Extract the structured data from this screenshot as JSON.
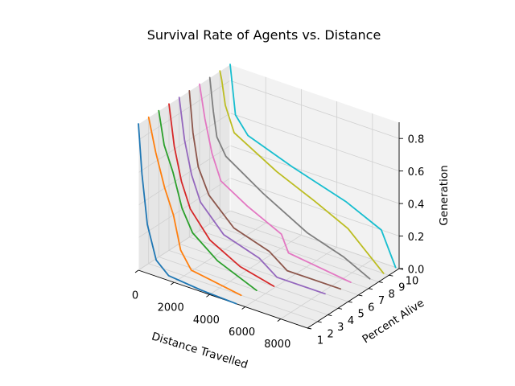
{
  "chart_data": {
    "type": "line",
    "title": "Survival Rate of Agents vs. Distance",
    "xlabel": "Distance Travelled",
    "ylabel": "Percent Alive",
    "zlabel": "Generation",
    "x_ticks": [
      "0",
      "2000",
      "4000",
      "6000",
      "8000"
    ],
    "y_ticks": [
      "1",
      "2",
      "3",
      "4",
      "5",
      "6",
      "7",
      "8",
      "9",
      "10"
    ],
    "z_ticks": [
      "0.0",
      "0.2",
      "0.4",
      "0.6",
      "0.8"
    ],
    "xlim": [
      0,
      9500
    ],
    "ylim": [
      1,
      10
    ],
    "zlim": [
      0,
      0.9
    ],
    "grid": true,
    "series": [
      {
        "color": "#1f77b4",
        "x": [
          0,
          200,
          500,
          1000,
          1700,
          3500,
          5500
        ],
        "z": [
          0.9,
          0.6,
          0.3,
          0.1,
          0.03,
          0.01,
          0.0
        ]
      },
      {
        "color": "#ff7f0e",
        "x": [
          0,
          400,
          900,
          1400,
          1800,
          2400,
          5200
        ],
        "z": [
          0.9,
          0.7,
          0.5,
          0.35,
          0.15,
          0.05,
          0.0
        ]
      },
      {
        "color": "#2ca02c",
        "x": [
          0,
          300,
          800,
          1300,
          1900,
          3300,
          5500
        ],
        "z": [
          0.9,
          0.7,
          0.55,
          0.35,
          0.22,
          0.1,
          0.0
        ]
      },
      {
        "color": "#d62728",
        "x": [
          0,
          300,
          700,
          1200,
          2300,
          4000,
          5900
        ],
        "z": [
          0.9,
          0.65,
          0.45,
          0.3,
          0.15,
          0.05,
          0.0
        ]
      },
      {
        "color": "#9467bd",
        "x": [
          0,
          300,
          700,
          1200,
          2500,
          4500,
          5500,
          8200
        ],
        "z": [
          0.9,
          0.65,
          0.45,
          0.3,
          0.15,
          0.08,
          0.0,
          0.0
        ]
      },
      {
        "color": "#8c564b",
        "x": [
          0,
          200,
          500,
          1100,
          2500,
          4500,
          5500,
          8500
        ],
        "z": [
          0.9,
          0.65,
          0.45,
          0.3,
          0.15,
          0.08,
          0.0,
          0.0
        ]
      },
      {
        "color": "#e377c2",
        "x": [
          0,
          300,
          700,
          1200,
          2700,
          4600,
          5000,
          8500
        ],
        "z": [
          0.9,
          0.7,
          0.5,
          0.35,
          0.25,
          0.15,
          0.05,
          0.0
        ]
      },
      {
        "color": "#7f7f7f",
        "x": [
          0,
          200,
          400,
          900,
          3000,
          5500,
          7500,
          9000
        ],
        "z": [
          0.9,
          0.7,
          0.55,
          0.45,
          0.3,
          0.15,
          0.08,
          0.0
        ]
      },
      {
        "color": "#bcbd22",
        "x": [
          0,
          100,
          300,
          800,
          3200,
          5300,
          7200,
          9200
        ],
        "z": [
          0.9,
          0.85,
          0.7,
          0.55,
          0.4,
          0.3,
          0.2,
          0.0
        ]
      },
      {
        "color": "#17becf",
        "x": [
          0,
          100,
          300,
          1000,
          3500,
          6500,
          8500,
          9300
        ],
        "z": [
          0.9,
          0.8,
          0.6,
          0.5,
          0.4,
          0.3,
          0.2,
          0.0
        ]
      }
    ]
  }
}
